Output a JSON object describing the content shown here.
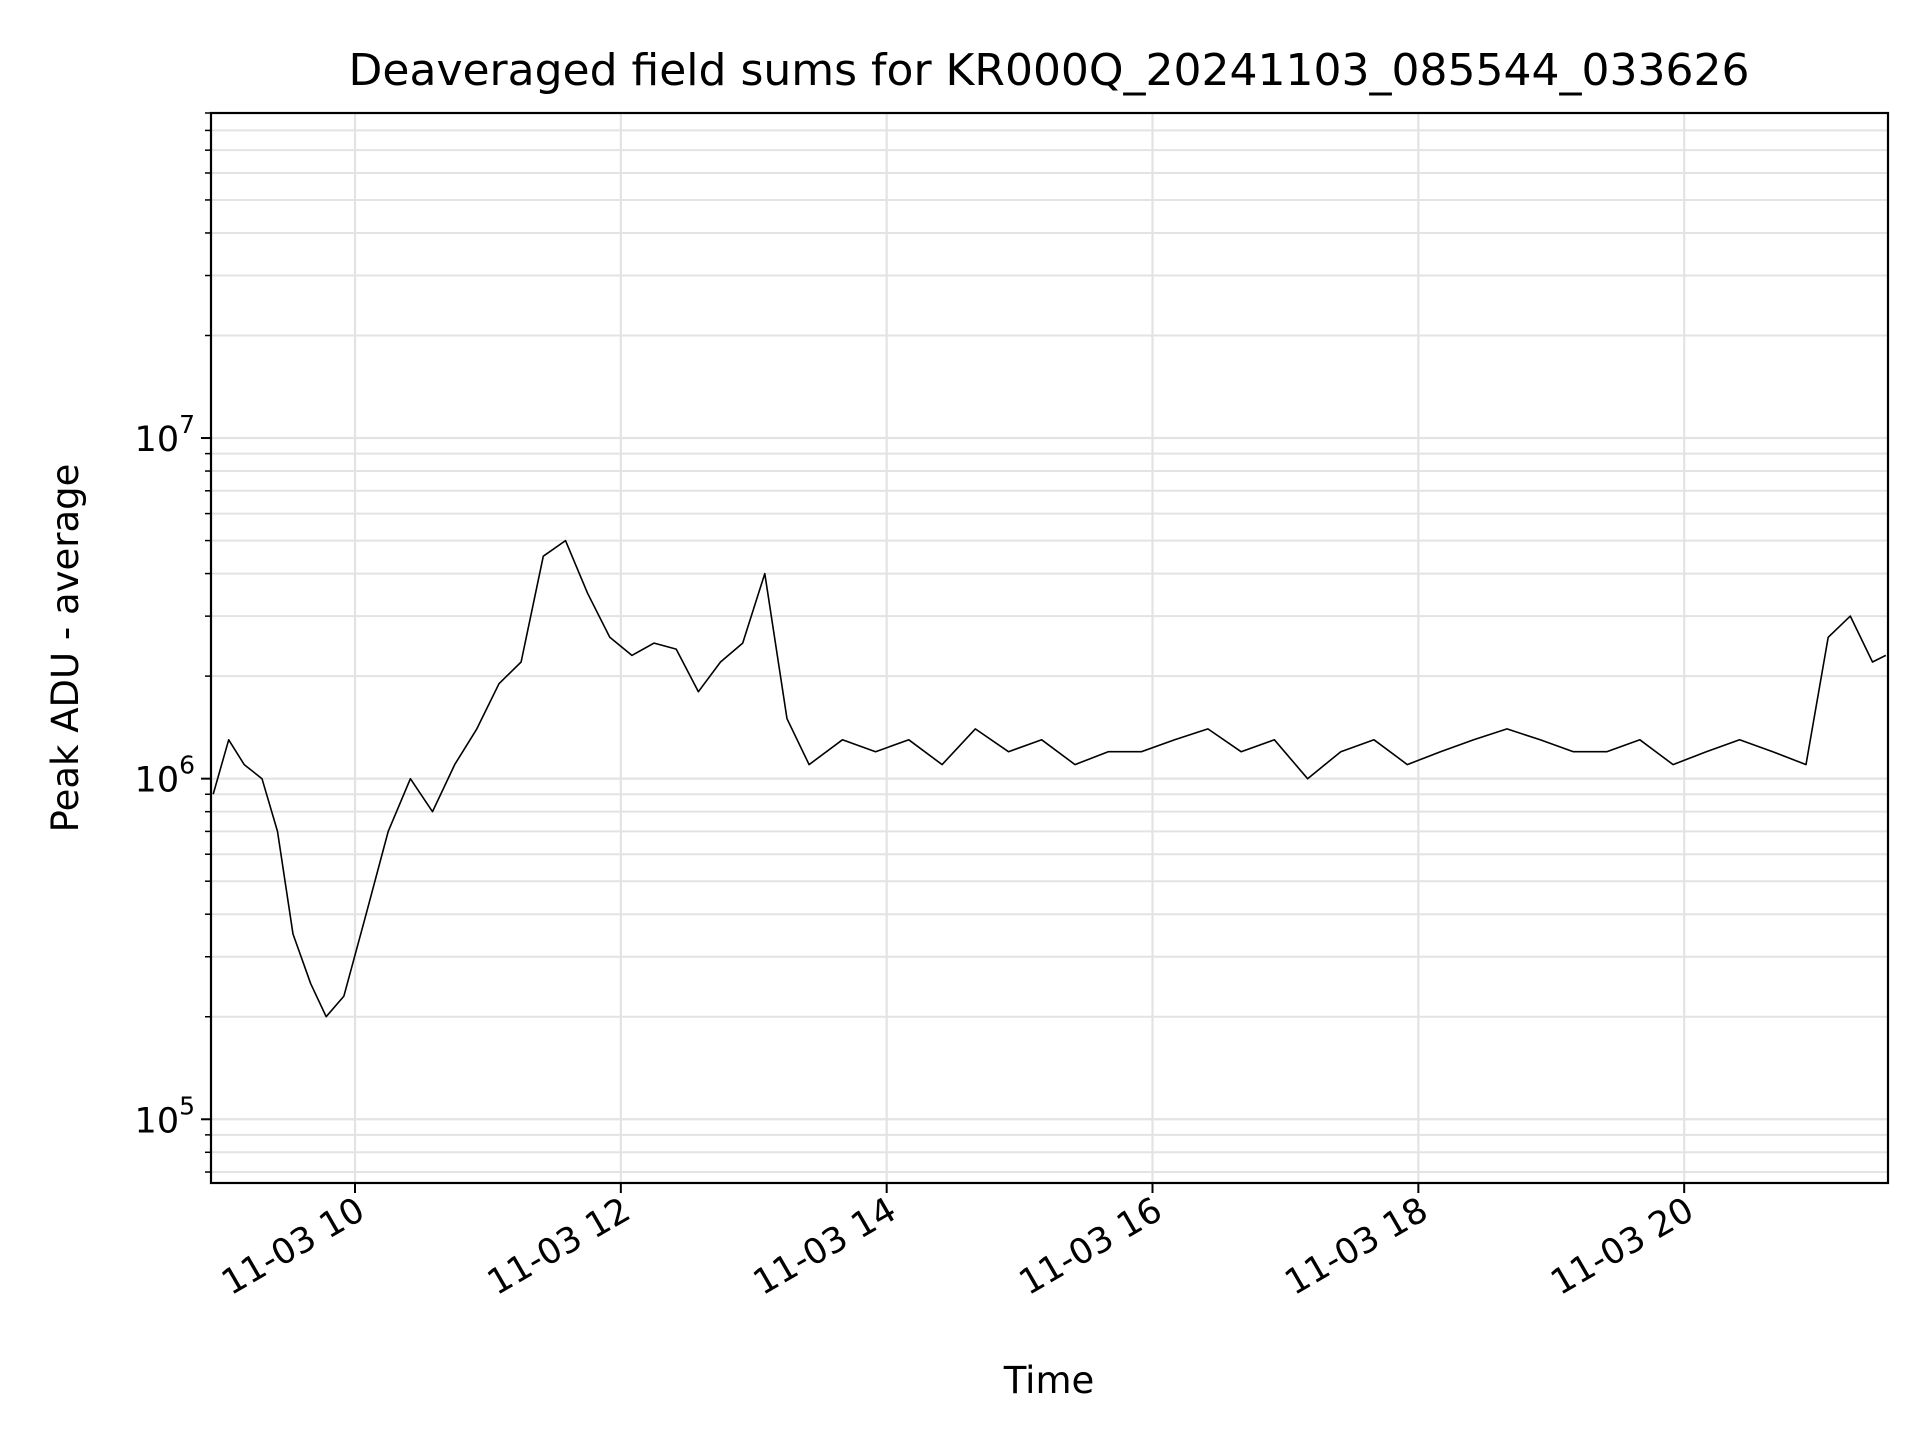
{
  "chart_data": {
    "type": "line",
    "title": "Deaveraged field sums for KR000Q_20241103_085544_033626",
    "xlabel": "Time",
    "ylabel": "Peak ADU - average",
    "yscale": "log",
    "xlim": [
      "2024-11-03 08:55",
      "2024-11-03 21:32"
    ],
    "ylim": [
      65000,
      90000000
    ],
    "grid": true,
    "x_tick_labels": [
      "11-03 10",
      "11-03 12",
      "11-03 14",
      "11-03 16",
      "11-03 18",
      "11-03 20"
    ],
    "x_tick_times": [
      "2024-11-03 10:00",
      "2024-11-03 12:00",
      "2024-11-03 14:00",
      "2024-11-03 16:00",
      "2024-11-03 18:00",
      "2024-11-03 20:00"
    ],
    "y_tick_labels": [
      {
        "base": "10",
        "exp": "5",
        "value": 100000
      },
      {
        "base": "10",
        "exp": "6",
        "value": 1000000
      },
      {
        "base": "10",
        "exp": "7",
        "value": 10000000
      }
    ],
    "series": [
      {
        "line_color": "#000000",
        "x": [
          "2024-11-03 08:56",
          "2024-11-03 09:03",
          "2024-11-03 09:10",
          "2024-11-03 09:18",
          "2024-11-03 09:25",
          "2024-11-03 09:32",
          "2024-11-03 09:40",
          "2024-11-03 09:47",
          "2024-11-03 09:55",
          "2024-11-03 10:05",
          "2024-11-03 10:15",
          "2024-11-03 10:25",
          "2024-11-03 10:35",
          "2024-11-03 10:45",
          "2024-11-03 10:55",
          "2024-11-03 11:05",
          "2024-11-03 11:15",
          "2024-11-03 11:25",
          "2024-11-03 11:35",
          "2024-11-03 11:45",
          "2024-11-03 11:55",
          "2024-11-03 12:05",
          "2024-11-03 12:15",
          "2024-11-03 12:25",
          "2024-11-03 12:35",
          "2024-11-03 12:45",
          "2024-11-03 12:55",
          "2024-11-03 13:05",
          "2024-11-03 13:15",
          "2024-11-03 13:25",
          "2024-11-03 13:40",
          "2024-11-03 13:55",
          "2024-11-03 14:10",
          "2024-11-03 14:25",
          "2024-11-03 14:40",
          "2024-11-03 14:55",
          "2024-11-03 15:10",
          "2024-11-03 15:25",
          "2024-11-03 15:40",
          "2024-11-03 15:55",
          "2024-11-03 16:10",
          "2024-11-03 16:25",
          "2024-11-03 16:40",
          "2024-11-03 16:55",
          "2024-11-03 17:10",
          "2024-11-03 17:25",
          "2024-11-03 17:40",
          "2024-11-03 17:55",
          "2024-11-03 18:10",
          "2024-11-03 18:25",
          "2024-11-03 18:40",
          "2024-11-03 18:55",
          "2024-11-03 19:10",
          "2024-11-03 19:25",
          "2024-11-03 19:40",
          "2024-11-03 19:55",
          "2024-11-03 20:10",
          "2024-11-03 20:25",
          "2024-11-03 20:40",
          "2024-11-03 20:55",
          "2024-11-03 21:05",
          "2024-11-03 21:15",
          "2024-11-03 21:25",
          "2024-11-03 21:31"
        ],
        "y": [
          900000,
          1300000,
          1100000,
          1000000,
          700000,
          350000,
          250000,
          200000,
          230000,
          400000,
          700000,
          1000000,
          800000,
          1100000,
          1400000,
          1900000,
          2200000,
          4500000,
          5000000,
          3500000,
          2600000,
          2300000,
          2500000,
          2400000,
          1800000,
          2200000,
          2500000,
          4000000,
          1500000,
          1100000,
          1300000,
          1200000,
          1300000,
          1100000,
          1400000,
          1200000,
          1300000,
          1100000,
          1200000,
          1200000,
          1300000,
          1400000,
          1200000,
          1300000,
          1000000,
          1200000,
          1300000,
          1100000,
          1200000,
          1300000,
          1400000,
          1300000,
          1200000,
          1200000,
          1300000,
          1100000,
          1200000,
          1300000,
          1200000,
          1100000,
          2600000,
          3000000,
          2200000,
          2300000
        ]
      }
    ]
  }
}
